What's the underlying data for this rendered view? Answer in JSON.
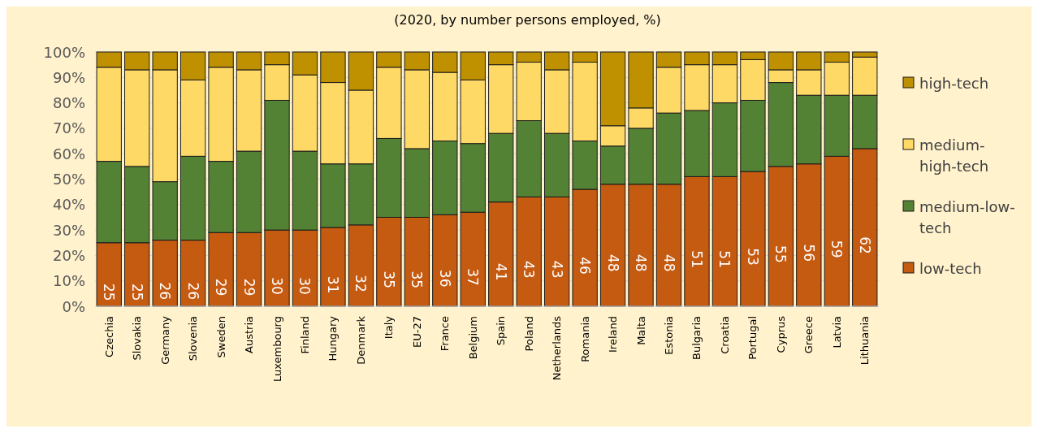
{
  "chart_data": {
    "type": "bar",
    "title": "(2020, by number persons employed, %)",
    "stacked": true,
    "grid": "y",
    "legend": "right",
    "categories": [
      "Czechia",
      "Slovakia",
      "Germany",
      "Slovenia",
      "Sweden",
      "Austria",
      "Luxembourg",
      "Finland",
      "Hungary",
      "Denmark",
      "Italy",
      "EU-27",
      "France",
      "Belgium",
      "Spain",
      "Poland",
      "Netherlands",
      "Romania",
      "Ireland",
      "Malta",
      "Estonia",
      "Bulgaria",
      "Croatia",
      "Portugal",
      "Cyprus",
      "Greece",
      "Latvia",
      "Lithuania"
    ],
    "ylim": [
      0,
      100
    ],
    "yticks": [
      {
        "value": 0,
        "label": "0%"
      },
      {
        "value": 10,
        "label": "10%"
      },
      {
        "value": 20,
        "label": "20%"
      },
      {
        "value": 30,
        "label": "30%"
      },
      {
        "value": 40,
        "label": "40%"
      },
      {
        "value": 50,
        "label": "50%"
      },
      {
        "value": 60,
        "label": "60%"
      },
      {
        "value": 70,
        "label": "70%"
      },
      {
        "value": 80,
        "label": "80%"
      },
      {
        "value": 90,
        "label": "90%"
      },
      {
        "value": 100,
        "label": "100%"
      }
    ],
    "series": [
      {
        "name": "low-tech",
        "color": "#c55a11",
        "values": [
          25,
          25,
          26,
          26,
          29,
          29,
          30,
          30,
          31,
          32,
          35,
          35,
          36,
          37,
          41,
          43,
          43,
          46,
          48,
          48,
          48,
          51,
          51,
          53,
          55,
          56,
          59,
          62
        ],
        "value_labels": [
          "25",
          "25",
          "26",
          "26",
          "29",
          "29",
          "30",
          "30",
          "31",
          "32",
          "35",
          "35",
          "36",
          "37",
          "41",
          "43",
          "43",
          "46",
          "48",
          "48",
          "48",
          "51",
          "51",
          "53",
          "55",
          "56",
          "59",
          "62"
        ]
      },
      {
        "name": "medium-low-tech",
        "color": "#548235",
        "values": [
          32,
          30,
          23,
          33,
          28,
          32,
          51,
          31,
          25,
          24,
          31,
          27,
          29,
          27,
          27,
          30,
          25,
          19,
          15,
          22,
          28,
          26,
          29,
          28,
          33,
          27,
          24,
          21
        ]
      },
      {
        "name": "medium-high-tech",
        "color": "#ffd966",
        "values": [
          37,
          38,
          44,
          30,
          37,
          32,
          14,
          30,
          32,
          29,
          28,
          31,
          27,
          25,
          27,
          23,
          25,
          31,
          8,
          8,
          18,
          18,
          15,
          16,
          5,
          10,
          13,
          15
        ]
      },
      {
        "name": "high-tech",
        "color": "#bf9000",
        "values": [
          6,
          7,
          7,
          11,
          6,
          7,
          5,
          9,
          12,
          15,
          6,
          7,
          8,
          11,
          5,
          4,
          7,
          4,
          29,
          22,
          6,
          5,
          5,
          3,
          7,
          7,
          4,
          2
        ]
      }
    ]
  }
}
